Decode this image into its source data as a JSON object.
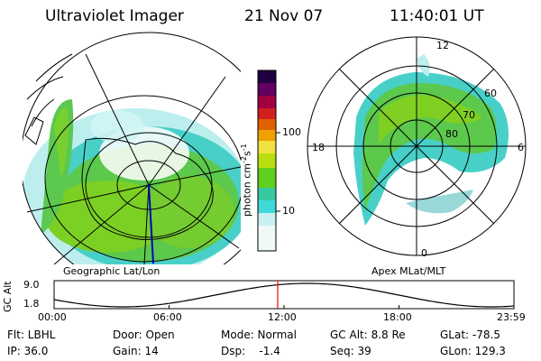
{
  "header": {
    "title": "Ultraviolet Imager",
    "date": "21 Nov 07",
    "time": "11:40:01 UT"
  },
  "left_panel": {
    "label": "Geographic Lat/Lon"
  },
  "right_panel": {
    "label": "Apex MLat/MLT",
    "mlt_labels": [
      "12",
      "18",
      "6",
      "0"
    ],
    "lat_labels": [
      "60",
      "70",
      "80"
    ]
  },
  "colorbar": {
    "label": "photon cm",
    "label_sup1": "-2",
    "label_s": "s",
    "label_sup2": "-1",
    "ticks": [
      "100",
      "10"
    ],
    "scale": "log",
    "colors": [
      "#ffffff",
      "#c8f0f0",
      "#40d8d8",
      "#38c8a0",
      "#60d020",
      "#b8e010",
      "#f0e040",
      "#f0a000",
      "#e06000",
      "#d02020",
      "#a00040",
      "#600060",
      "#200040"
    ]
  },
  "timeline": {
    "ylabel": "GC Alt",
    "y_ticks": [
      "9.0",
      "1.8"
    ],
    "x_ticks": [
      "00:00",
      "06:00",
      "12:00",
      "18:00",
      "23:59"
    ],
    "marker_hour": 11.67,
    "marker_color": "#ff0000"
  },
  "info": {
    "filter": "Flt: LBHL",
    "ip": "IP: 36.0",
    "door": "Door: Open",
    "gain": "Gain: 14",
    "mode": "Mode: Normal",
    "dsp": "Dsp:    -1.4",
    "gc_alt": "GC Alt: 8.8 Re",
    "seq": "Seq: 39",
    "glat": "GLat: -78.5",
    "glon": "GLon: 129.3"
  }
}
